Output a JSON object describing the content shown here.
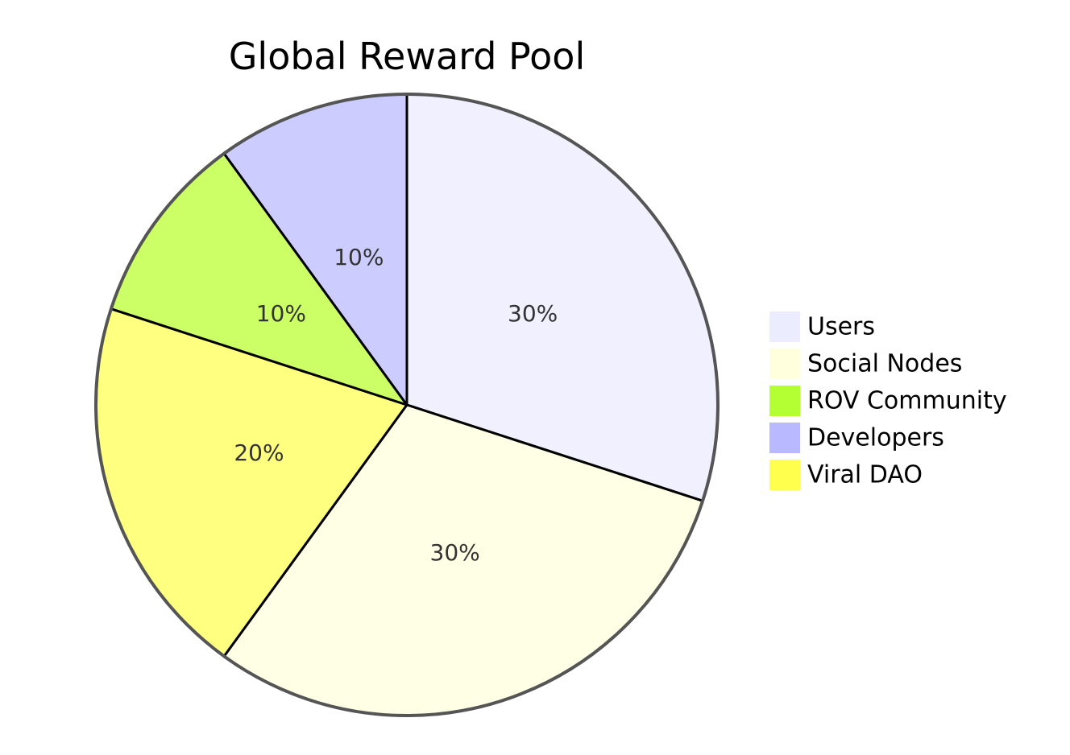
{
  "chart_data": {
    "type": "pie",
    "title": "Global Reward Pool",
    "slices": [
      {
        "name": "Users",
        "value": 30,
        "label": "30%",
        "color": "#f0f0ff"
      },
      {
        "name": "Social Nodes",
        "value": 30,
        "label": "30%",
        "color": "#ffffe6"
      },
      {
        "name": "Viral DAO",
        "value": 20,
        "label": "20%",
        "color": "#ffff80"
      },
      {
        "name": "ROV Community",
        "value": 10,
        "label": "10%",
        "color": "#ccff66"
      },
      {
        "name": "Developers",
        "value": 10,
        "label": "10%",
        "color": "#ccccff"
      }
    ],
    "legend": {
      "placement": "right",
      "entries": [
        {
          "name": "Users",
          "color": "#ececff"
        },
        {
          "name": "Social Nodes",
          "color": "#ffffde"
        },
        {
          "name": "ROV Community",
          "color": "#b3ff33"
        },
        {
          "name": "Developers",
          "color": "#b9b9ff"
        },
        {
          "name": "Viral DAO",
          "color": "#ffff4d"
        }
      ]
    },
    "start_angle": "top",
    "direction": "clockwise",
    "outline_color": "#555555",
    "slice_border_color": "#000000"
  }
}
